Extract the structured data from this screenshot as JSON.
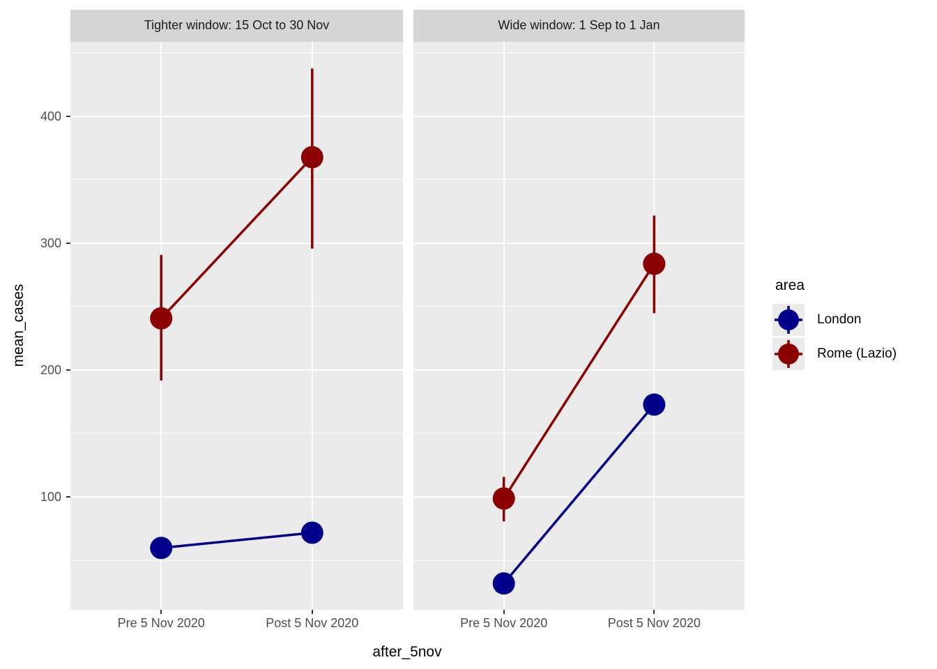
{
  "chart_data": {
    "type": "pointrange",
    "title": "",
    "xlabel": "after_5nov",
    "ylabel": "mean_cases",
    "legend_title": "area",
    "categories": [
      "Pre 5 Nov 2020",
      "Post 5 Nov 2020"
    ],
    "y_ticks": [
      100,
      200,
      300,
      400
    ],
    "y_minor_ticks": [
      50,
      150,
      250,
      350,
      450
    ],
    "ylim": [
      11,
      459
    ],
    "grid": "on",
    "legend_position": "right",
    "facets": [
      {
        "label": "Tighter window: 15 Oct to 30 Nov",
        "series": [
          {
            "name": "London",
            "color": "#00008B",
            "points": [
              {
                "category": "Pre 5 Nov 2020",
                "mean": 60,
                "lo": 56,
                "hi": 64
              },
              {
                "category": "Post 5 Nov 2020",
                "mean": 72,
                "lo": 68,
                "hi": 76
              }
            ]
          },
          {
            "name": "Rome (Lazio)",
            "color": "#8B0000",
            "points": [
              {
                "category": "Pre 5 Nov 2020",
                "mean": 241,
                "lo": 192,
                "hi": 291
              },
              {
                "category": "Post 5 Nov 2020",
                "mean": 368,
                "lo": 296,
                "hi": 438
              }
            ]
          }
        ]
      },
      {
        "label": "Wide window: 1 Sep to 1 Jan",
        "series": [
          {
            "name": "London",
            "color": "#00008B",
            "points": [
              {
                "category": "Pre 5 Nov 2020",
                "mean": 32,
                "lo": 28,
                "hi": 36
              },
              {
                "category": "Post 5 Nov 2020",
                "mean": 173,
                "lo": 168,
                "hi": 178
              }
            ]
          },
          {
            "name": "Rome (Lazio)",
            "color": "#8B0000",
            "points": [
              {
                "category": "Pre 5 Nov 2020",
                "mean": 99,
                "lo": 81,
                "hi": 116
              },
              {
                "category": "Post 5 Nov 2020",
                "mean": 284,
                "lo": 245,
                "hi": 322
              }
            ]
          }
        ]
      }
    ],
    "legend_entries": [
      {
        "label": "London",
        "color": "#00008B"
      },
      {
        "label": "Rome (Lazio)",
        "color": "#8B0000"
      }
    ],
    "colors": {
      "panel_bg": "#EBEBEB",
      "strip_bg": "#D5D5D5",
      "grid": "#FFFFFF",
      "tick_text": "#4D4D4D",
      "axis_text": "#000000"
    }
  }
}
